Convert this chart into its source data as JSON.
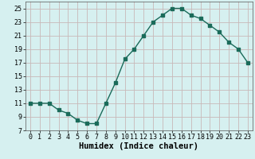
{
  "x": [
    0,
    1,
    2,
    3,
    4,
    5,
    6,
    7,
    8,
    9,
    10,
    11,
    12,
    13,
    14,
    15,
    16,
    17,
    18,
    19,
    20,
    21,
    22,
    23
  ],
  "y": [
    11,
    11,
    11,
    10,
    9.5,
    8.5,
    8,
    8,
    11,
    14,
    17.5,
    19,
    21,
    23,
    24,
    25,
    25,
    24,
    23.5,
    22.5,
    21.5,
    20,
    19,
    17
  ],
  "xlabel": "Humidex (Indice chaleur)",
  "ylabel": "",
  "xlim": [
    -0.5,
    23.5
  ],
  "ylim": [
    7,
    26
  ],
  "yticks": [
    7,
    9,
    11,
    13,
    15,
    17,
    19,
    21,
    23,
    25
  ],
  "xticks": [
    0,
    1,
    2,
    3,
    4,
    5,
    6,
    7,
    8,
    9,
    10,
    11,
    12,
    13,
    14,
    15,
    16,
    17,
    18,
    19,
    20,
    21,
    22,
    23
  ],
  "line_color": "#1a6b5a",
  "marker": "s",
  "marker_size": 2.5,
  "line_width": 1.0,
  "bg_color": "#d6f0f0",
  "grid_color": "#c8b8b8",
  "tick_fontsize": 6,
  "xlabel_fontsize": 7.5,
  "xlabel_fontweight": "bold"
}
